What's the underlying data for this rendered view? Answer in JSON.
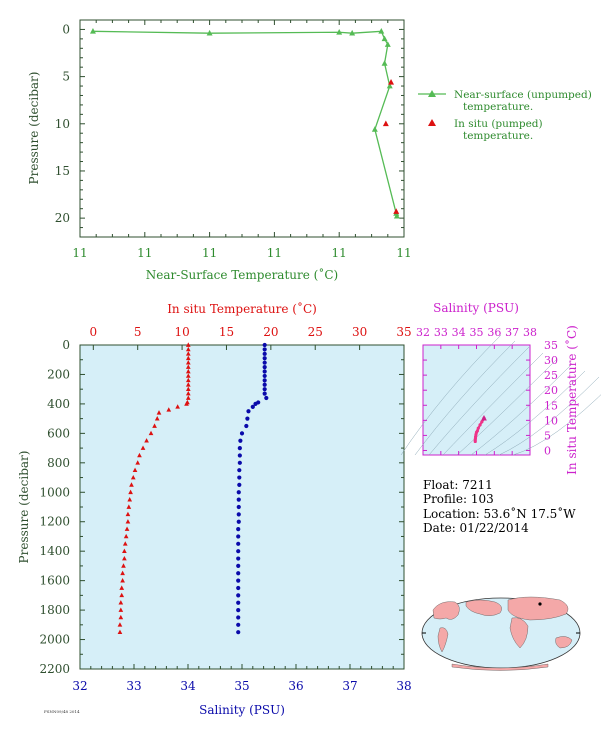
{
  "colors": {
    "green": "#2e8b2e",
    "green_line": "#55bb55",
    "red": "#dd1111",
    "blue": "#0a0aaa",
    "magenta": "#cc22cc",
    "axis_dark": "#2f4f2f",
    "panel_bg": "#d6eff8",
    "land": "#f4a8a8",
    "ocean": "#d6eff8"
  },
  "chart_data": [
    {
      "type": "line",
      "xlabel": "Near-Surface Temperature (˚C)",
      "ylabel": "Pressure (decibar)",
      "x_tick_labels": [
        "11",
        "11",
        "11",
        "11",
        "11",
        "11"
      ],
      "y_tick_labels": [
        "0",
        "5",
        "10",
        "15",
        "20"
      ],
      "xlim": [
        10.85,
        11.35
      ],
      "ylim": [
        22,
        -1
      ],
      "series": [
        {
          "name": "Near-surface (unpumped) temperature.",
          "style": "line-triangle",
          "points": [
            [
              10.87,
              0.2
            ],
            [
              11.05,
              0.4
            ],
            [
              11.25,
              0.3
            ],
            [
              11.27,
              0.4
            ],
            [
              11.315,
              0.2
            ],
            [
              11.32,
              1.0
            ],
            [
              11.325,
              1.6
            ],
            [
              11.32,
              3.6
            ],
            [
              11.328,
              6.0
            ],
            [
              11.305,
              10.6
            ],
            [
              11.338,
              19.5
            ],
            [
              11.339,
              19.8
            ]
          ]
        },
        {
          "name": "In situ (pumped) temperature.",
          "style": "triangle",
          "points": [
            [
              11.33,
              5.6
            ],
            [
              11.322,
              10.0
            ],
            [
              11.338,
              19.3
            ]
          ]
        }
      ]
    },
    {
      "type": "scatter",
      "x_top_label": "In situ Temperature (˚C)",
      "x_bottom_label": "Salinity (PSU)",
      "ylabel": "Pressure (decibar)",
      "temp_ticks": [
        0,
        5,
        10,
        15,
        20,
        25,
        30,
        35
      ],
      "sal_ticks": [
        32,
        33,
        34,
        35,
        36,
        37,
        38
      ],
      "pressure_ticks": [
        0,
        200,
        400,
        600,
        800,
        1000,
        1200,
        1400,
        1600,
        1800,
        2000,
        2200
      ],
      "temp_range": [
        -1.5,
        35
      ],
      "sal_range": [
        32,
        38
      ],
      "pressure_range": [
        0,
        2200
      ],
      "series": [
        {
          "name": "In situ Temperature",
          "style": "triangle",
          "points": [
            [
              10.7,
              0
            ],
            [
              10.7,
              30
            ],
            [
              10.7,
              60
            ],
            [
              10.7,
              90
            ],
            [
              10.7,
              120
            ],
            [
              10.7,
              150
            ],
            [
              10.7,
              180
            ],
            [
              10.7,
              210
            ],
            [
              10.7,
              240
            ],
            [
              10.7,
              270
            ],
            [
              10.7,
              300
            ],
            [
              10.7,
              330
            ],
            [
              10.7,
              360
            ],
            [
              10.6,
              390
            ],
            [
              10.5,
              400
            ],
            [
              9.5,
              420
            ],
            [
              8.5,
              440
            ],
            [
              7.4,
              460
            ],
            [
              7.2,
              500
            ],
            [
              6.9,
              550
            ],
            [
              6.5,
              600
            ],
            [
              6.0,
              650
            ],
            [
              5.6,
              700
            ],
            [
              5.2,
              750
            ],
            [
              5.0,
              800
            ],
            [
              4.7,
              850
            ],
            [
              4.5,
              900
            ],
            [
              4.3,
              950
            ],
            [
              4.2,
              1000
            ],
            [
              4.1,
              1050
            ],
            [
              4.0,
              1100
            ],
            [
              3.9,
              1150
            ],
            [
              3.9,
              1200
            ],
            [
              3.8,
              1250
            ],
            [
              3.7,
              1300
            ],
            [
              3.6,
              1350
            ],
            [
              3.5,
              1400
            ],
            [
              3.5,
              1450
            ],
            [
              3.4,
              1500
            ],
            [
              3.3,
              1550
            ],
            [
              3.3,
              1600
            ],
            [
              3.2,
              1650
            ],
            [
              3.2,
              1700
            ],
            [
              3.1,
              1750
            ],
            [
              3.1,
              1800
            ],
            [
              3.1,
              1850
            ],
            [
              3.0,
              1900
            ],
            [
              3.0,
              1950
            ]
          ]
        },
        {
          "name": "Salinity",
          "style": "dot",
          "points": [
            [
              35.42,
              0
            ],
            [
              35.42,
              30
            ],
            [
              35.42,
              60
            ],
            [
              35.42,
              90
            ],
            [
              35.42,
              120
            ],
            [
              35.42,
              150
            ],
            [
              35.42,
              180
            ],
            [
              35.42,
              210
            ],
            [
              35.42,
              240
            ],
            [
              35.42,
              270
            ],
            [
              35.42,
              300
            ],
            [
              35.42,
              330
            ],
            [
              35.45,
              360
            ],
            [
              35.3,
              390
            ],
            [
              35.25,
              400
            ],
            [
              35.2,
              420
            ],
            [
              35.12,
              450
            ],
            [
              35.1,
              500
            ],
            [
              35.08,
              550
            ],
            [
              35.0,
              600
            ],
            [
              34.97,
              650
            ],
            [
              34.96,
              700
            ],
            [
              34.96,
              750
            ],
            [
              34.96,
              800
            ],
            [
              34.95,
              850
            ],
            [
              34.95,
              900
            ],
            [
              34.95,
              950
            ],
            [
              34.94,
              1000
            ],
            [
              34.94,
              1050
            ],
            [
              34.94,
              1100
            ],
            [
              34.94,
              1150
            ],
            [
              34.94,
              1200
            ],
            [
              34.93,
              1250
            ],
            [
              34.93,
              1300
            ],
            [
              34.93,
              1350
            ],
            [
              34.93,
              1400
            ],
            [
              34.93,
              1450
            ],
            [
              34.93,
              1500
            ],
            [
              34.93,
              1550
            ],
            [
              34.93,
              1600
            ],
            [
              34.93,
              1650
            ],
            [
              34.93,
              1700
            ],
            [
              34.93,
              1750
            ],
            [
              34.93,
              1800
            ],
            [
              34.93,
              1850
            ],
            [
              34.93,
              1900
            ],
            [
              34.93,
              1950
            ]
          ]
        }
      ]
    },
    {
      "type": "scatter",
      "title": "Salinity (PSU)",
      "ylabel": "In situ Temperature (˚C)",
      "x_ticks": [
        32,
        33,
        34,
        35,
        36,
        37,
        38
      ],
      "y_ticks": [
        0,
        5,
        10,
        15,
        20,
        25,
        30,
        35
      ],
      "xlim": [
        32,
        38
      ],
      "ylim": [
        -1.5,
        35
      ],
      "series": [
        {
          "name": "T-S",
          "points": [
            [
              35.42,
              10.7
            ],
            [
              35.42,
              10.5
            ],
            [
              35.3,
              9.5
            ],
            [
              35.2,
              8.5
            ],
            [
              35.1,
              7.4
            ],
            [
              35.05,
              6.5
            ],
            [
              35.0,
              6.0
            ],
            [
              34.97,
              5.3
            ],
            [
              34.95,
              4.6
            ],
            [
              34.94,
              4.0
            ],
            [
              34.93,
              3.5
            ],
            [
              34.93,
              3.0
            ]
          ]
        }
      ]
    }
  ],
  "legend": {
    "unpumped_line1": "Near-surface (unpumped)",
    "unpumped_line2": "temperature.",
    "pumped_line1": "In situ (pumped)",
    "pumped_line2": "temperature."
  },
  "info": {
    "float": "Float:  7211",
    "profile": "Profile:  103",
    "location": "Location:  53.6˚N  17.5˚W",
    "date": "Date:  01/22/2014"
  },
  "footer_small": "FSNN09/48 2014"
}
